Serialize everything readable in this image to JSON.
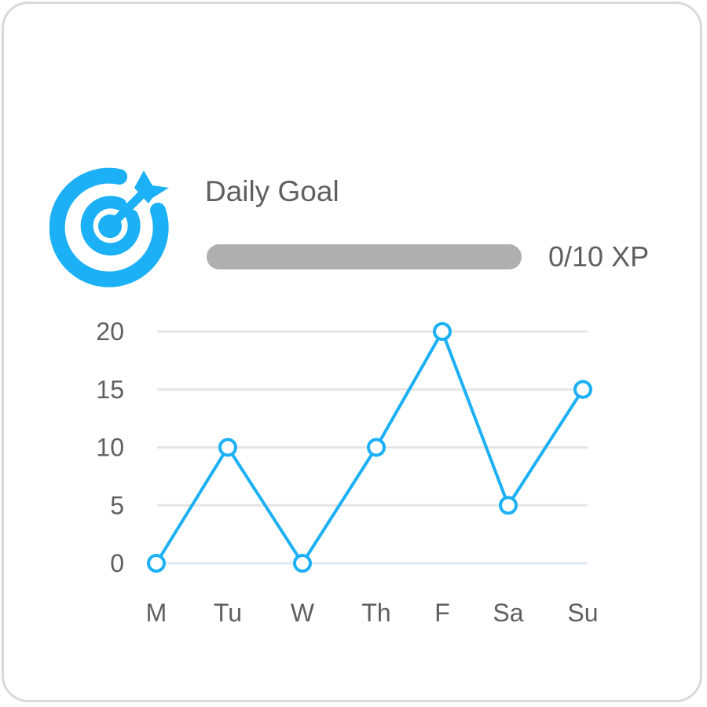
{
  "goal": {
    "title": "Daily Goal",
    "progress_text": "0/10 XP",
    "progress_fraction": 0,
    "icon": "target-icon"
  },
  "colors": {
    "accent": "#1cb0f6",
    "track": "#afafaf",
    "grid": "#e5e5e5",
    "baseline": "#dde9f7",
    "text": "#5f5f5f"
  },
  "chart_data": {
    "type": "line",
    "categories": [
      "M",
      "Tu",
      "W",
      "Th",
      "F",
      "Sa",
      "Su"
    ],
    "values": [
      0,
      10,
      0,
      10,
      20,
      5,
      15
    ],
    "yticks": [
      "0",
      "5",
      "10",
      "15",
      "20"
    ],
    "ylim": [
      0,
      20
    ],
    "grid": true
  }
}
